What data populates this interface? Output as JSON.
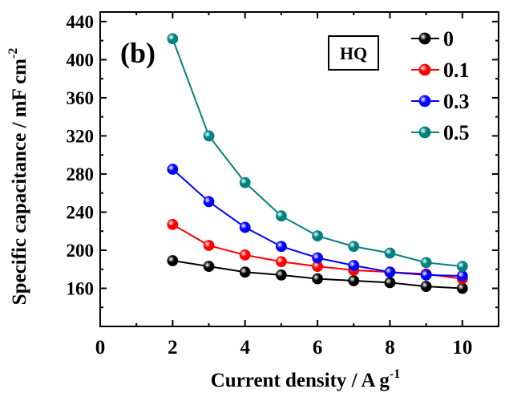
{
  "chart_data": {
    "type": "line",
    "panel_label": "(b)",
    "annotation_box": "HQ",
    "xlabel_main": "Current density / A g",
    "xlabel_sup": "-1",
    "ylabel_main": "Specific capacitance / mF cm",
    "ylabel_sup": "-2",
    "xlim": [
      0,
      11
    ],
    "ylim": [
      120,
      450
    ],
    "xticks": [
      0,
      2,
      4,
      6,
      8,
      10
    ],
    "yticks": [
      160,
      200,
      240,
      280,
      320,
      360,
      400,
      440
    ],
    "x": [
      2,
      3,
      4,
      5,
      6,
      7,
      8,
      9,
      10
    ],
    "legend_position": "top-right",
    "series": [
      {
        "name": "0",
        "color": "#000000",
        "values": [
          189,
          183,
          177,
          174,
          170,
          168,
          166,
          162,
          160
        ]
      },
      {
        "name": "0.1",
        "color": "#ff0000",
        "values": [
          227,
          205,
          195,
          188,
          183,
          179,
          177,
          175,
          170
        ]
      },
      {
        "name": "0.3",
        "color": "#0000ff",
        "values": [
          285,
          251,
          224,
          204,
          192,
          184,
          177,
          174,
          173
        ]
      },
      {
        "name": "0.5",
        "color": "#008080",
        "values": [
          422,
          320,
          271,
          236,
          215,
          204,
          197,
          187,
          183
        ]
      }
    ]
  }
}
